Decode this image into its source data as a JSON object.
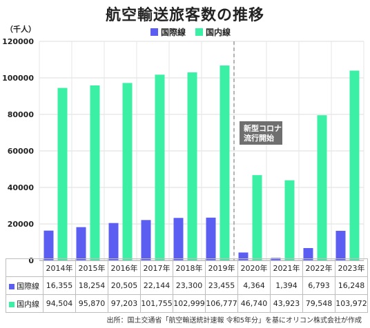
{
  "title": "航空輸送旅客数の推移",
  "unit": "（千人）",
  "colors": {
    "international": "#5b5ef0",
    "domestic": "#3bf0a5",
    "annotation_bg": "#6f6f6f",
    "divider": "#999999"
  },
  "annotation": "新型コロナ\n流行開始",
  "source": "出所：国土交通省「航空輸送統計速報 令和5年分」を基にオリコン株式会社が作成",
  "chart_data": {
    "type": "bar",
    "categories": [
      "2014年",
      "2015年",
      "2016年",
      "2017年",
      "2018年",
      "2019年",
      "2020年",
      "2021年",
      "2022年",
      "2023年"
    ],
    "series": [
      {
        "name": "国際線",
        "values": [
          16355,
          18254,
          20505,
          22144,
          23300,
          23455,
          4364,
          1394,
          6793,
          16248
        ],
        "labels": [
          "16,355",
          "18,254",
          "20,505",
          "22,144",
          "23,300",
          "23,455",
          "4,364",
          "1,394",
          "6,793",
          "16,248"
        ]
      },
      {
        "name": "国内線",
        "values": [
          94504,
          95870,
          97203,
          101755,
          102999,
          106777,
          46740,
          43923,
          79548,
          103972
        ],
        "labels": [
          "94,504",
          "95,870",
          "97,203",
          "101,755",
          "102,999",
          "106,777",
          "46,740",
          "43,923",
          "79,548",
          "103,972"
        ]
      }
    ],
    "yticks": [
      "0",
      "20000",
      "40000",
      "60000",
      "80000",
      "100000",
      "120000"
    ],
    "ylim": [
      0,
      120000
    ],
    "grid": true,
    "legend": "top-center"
  }
}
